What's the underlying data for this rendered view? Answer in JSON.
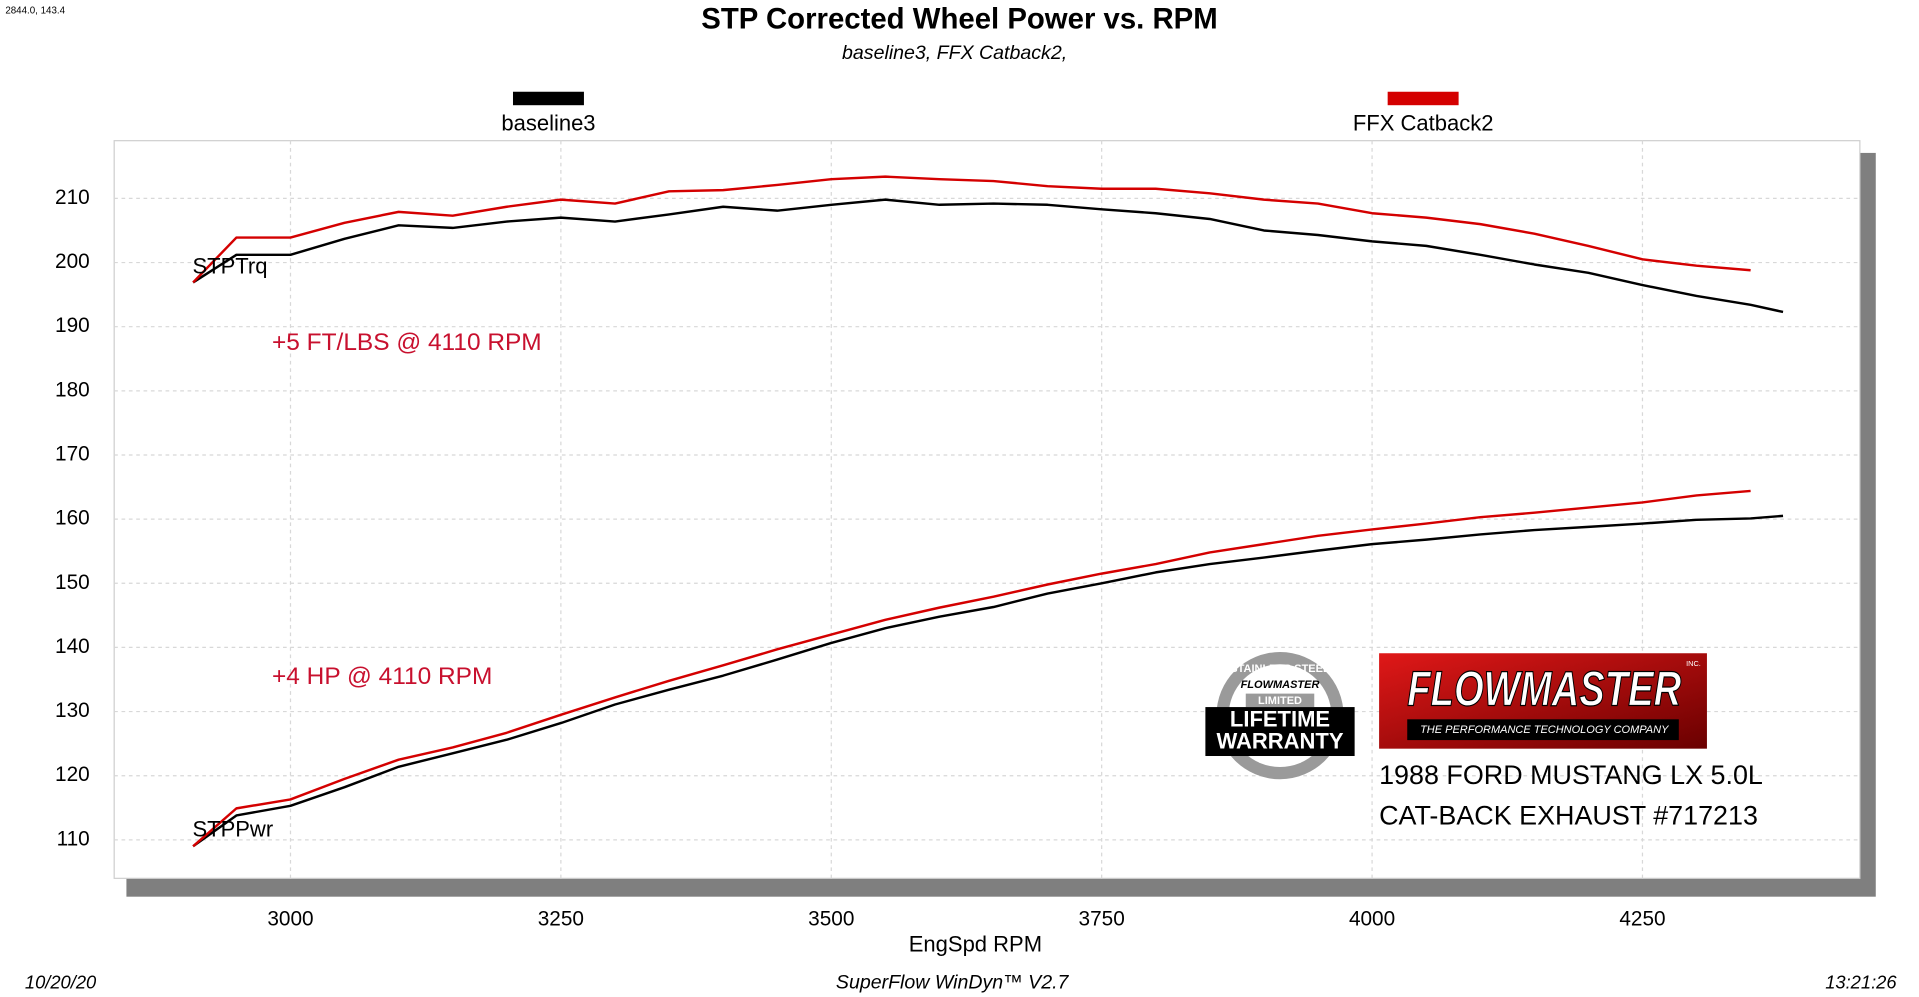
{
  "chart_data": {
    "type": "line",
    "title": "STP Corrected Wheel Power vs. RPM",
    "subtitle": "baseline3, FFX Catback2,",
    "cursor_readout": "2844.0, 143.4",
    "x_label": "EngSpd  RPM",
    "x": [
      2910,
      2950,
      3000,
      3050,
      3100,
      3150,
      3200,
      3250,
      3300,
      3350,
      3400,
      3450,
      3500,
      3550,
      3600,
      3650,
      3700,
      3750,
      3800,
      3850,
      3900,
      3950,
      4000,
      4050,
      4100,
      4150,
      4200,
      4250,
      4300,
      4350,
      4380
    ],
    "series": [
      {
        "name": "baseline3",
        "color": "#000000",
        "torque": [
          196.9,
          201.2,
          201.2,
          203.7,
          205.8,
          205.4,
          206.4,
          207.0,
          206.4,
          207.5,
          208.7,
          208.1,
          209.0,
          209.8,
          209.0,
          209.2,
          209.0,
          208.3,
          207.7,
          206.8,
          205.0,
          204.3,
          203.3,
          202.6,
          201.2,
          199.7,
          198.4,
          196.5,
          194.8,
          193.4,
          192.3
        ],
        "power": [
          109.0,
          113.8,
          115.3,
          118.2,
          121.4,
          123.5,
          125.6,
          128.2,
          131.1,
          133.4,
          135.6,
          138.1,
          140.7,
          143.0,
          144.8,
          146.3,
          148.4,
          150.0,
          151.7,
          153.0,
          154.0,
          155.1,
          156.1,
          156.8,
          157.6,
          158.3,
          158.8,
          159.3,
          159.9,
          160.1,
          160.5
        ]
      },
      {
        "name": "FFX Catback2",
        "color": "#d40000",
        "torque": [
          196.9,
          203.9,
          203.9,
          206.2,
          207.9,
          207.3,
          208.7,
          209.8,
          209.2,
          211.1,
          211.3,
          212.1,
          213.0,
          213.4,
          213.0,
          212.7,
          211.9,
          211.5,
          211.5,
          210.8,
          209.8,
          209.2,
          207.7,
          207.0,
          206.0,
          204.5,
          202.6,
          200.5,
          199.5,
          198.8,
          null
        ],
        "power": [
          109.0,
          114.9,
          116.3,
          119.5,
          122.5,
          124.4,
          126.7,
          129.5,
          132.2,
          134.8,
          137.2,
          139.7,
          142.0,
          144.3,
          146.2,
          147.9,
          149.8,
          151.5,
          153.0,
          154.8,
          156.1,
          157.4,
          158.4,
          159.3,
          160.3,
          161.0,
          161.8,
          162.6,
          163.7,
          164.4,
          null
        ]
      }
    ],
    "curve_labels": {
      "torque": "STPTrq",
      "power": "STPPwr"
    },
    "annotations": [
      "+5 FT/LBS @ 4110 RPM",
      "+4 HP @ 4110 RPM"
    ],
    "annotation_color": "#c8102e",
    "xlim": [
      2837,
      4451
    ],
    "xticks": [
      3000,
      3250,
      3500,
      3750,
      4000,
      4250
    ],
    "ylim": [
      104,
      219
    ],
    "yticks": [
      110,
      120,
      130,
      140,
      150,
      160,
      170,
      180,
      190,
      200,
      210
    ],
    "grid": true
  },
  "footer": {
    "date": "10/20/20",
    "software": "SuperFlow WinDyn™ V2.7",
    "time": "13:21:26"
  },
  "badge": {
    "top": "STAINLESS STEEL",
    "brand": "FLOWMASTER",
    "limited": "LIMITED",
    "line1": "LIFETIME",
    "line2": "WARRANTY"
  },
  "logo": {
    "brand": "FLOWMASTER",
    "inc": "INC.",
    "tagline": "THE PERFORMANCE TECHNOLOGY COMPANY"
  },
  "vehicle": {
    "line1": "1988 FORD MUSTANG LX 5.0L",
    "line2": "CAT-BACK EXHAUST #717213"
  }
}
